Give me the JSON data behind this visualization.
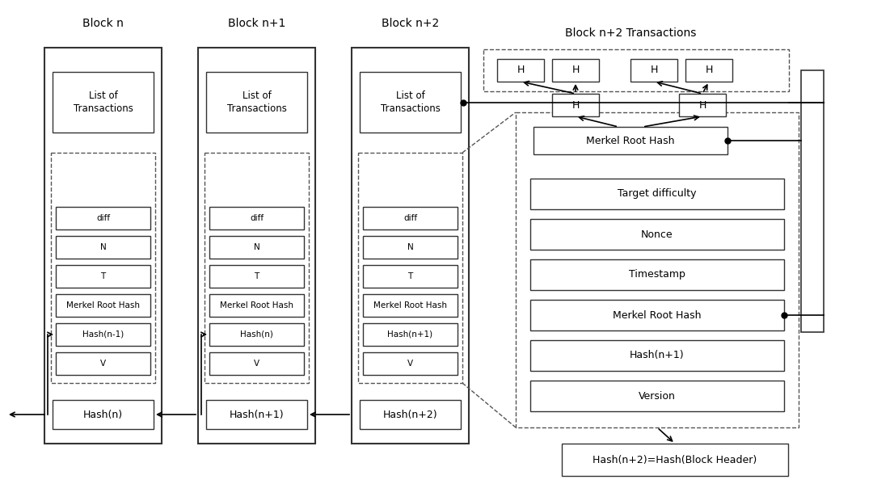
{
  "bg_color": "#ffffff",
  "fig_width": 10.8,
  "fig_height": 5.99,
  "blocks": [
    {
      "label": "Block n",
      "hash_label": "Hash(n)",
      "inner_items": [
        "V",
        "Hash(n-1)",
        "Merkel Root Hash",
        "T",
        "N",
        "diff"
      ]
    },
    {
      "label": "Block n+1",
      "hash_label": "Hash(n+1)",
      "inner_items": [
        "V",
        "Hash(n)",
        "Merkel Root Hash",
        "T",
        "N",
        "diff"
      ]
    },
    {
      "label": "Block n+2",
      "hash_label": "Hash(n+2)",
      "inner_items": [
        "V",
        "Hash(n+1)",
        "Merkel Root Hash",
        "T",
        "N",
        "diff"
      ]
    }
  ],
  "header_box_label": "Hash(n+2)=Hash(Block Header)",
  "block_header_items": [
    "Version",
    "Hash(n+1)",
    "Merkel Root Hash",
    "Timestamp",
    "Nonce",
    "Target difficulty"
  ],
  "merkle_root_label": "Merkel Root Hash",
  "merkle_txn_label": "Block n+2 Transactions"
}
